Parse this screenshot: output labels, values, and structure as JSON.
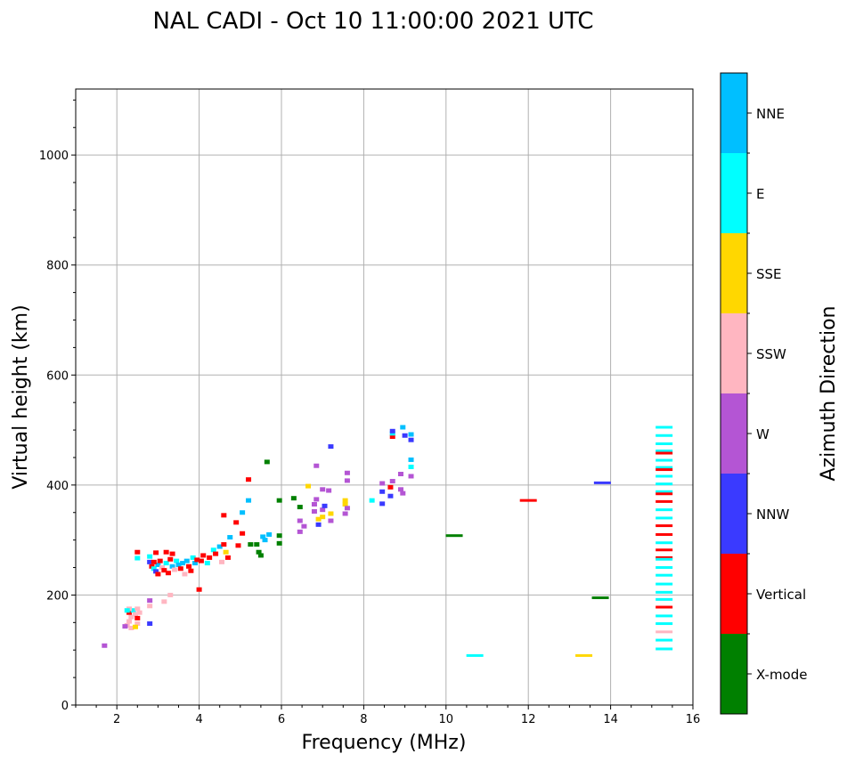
{
  "chart_data": {
    "type": "scatter",
    "title": "NAL CADI - Oct 10 11:00:00 2021 UTC",
    "xlabel": "Frequency (MHz)",
    "ylabel": "Virtual height (km)",
    "xlim": [
      1,
      16
    ],
    "ylim": [
      0,
      1120
    ],
    "xticks": [
      2,
      4,
      6,
      8,
      10,
      12,
      14,
      16
    ],
    "yticks": [
      0,
      200,
      400,
      600,
      800,
      1000
    ],
    "grid": true,
    "colorbar": {
      "label": "Azimuth Direction",
      "categories": [
        "X-mode",
        "Vertical",
        "NNW",
        "W",
        "SSW",
        "SSE",
        "E",
        "NNE"
      ],
      "colors": [
        "#008000",
        "#ff0000",
        "#3a3aff",
        "#b455d4",
        "#ffb6c1",
        "#ffd700",
        "#00ffff",
        "#00bfff"
      ]
    },
    "point_format": [
      "freq_MHz",
      "height_km",
      "direction_index"
    ],
    "points": [
      [
        1.7,
        108,
        3
      ],
      [
        2.25,
        145,
        4
      ],
      [
        2.3,
        152,
        4
      ],
      [
        2.35,
        160,
        4
      ],
      [
        2.3,
        168,
        1
      ],
      [
        2.4,
        172,
        6
      ],
      [
        2.45,
        165,
        4
      ],
      [
        2.5,
        158,
        1
      ],
      [
        2.5,
        148,
        4
      ],
      [
        2.35,
        140,
        4
      ],
      [
        2.3,
        175,
        4
      ],
      [
        2.45,
        142,
        5
      ],
      [
        2.5,
        175,
        4
      ],
      [
        2.55,
        168,
        4
      ],
      [
        2.25,
        172,
        6
      ],
      [
        2.2,
        143,
        3
      ],
      [
        2.8,
        148,
        2
      ],
      [
        2.8,
        180,
        4
      ],
      [
        2.8,
        190,
        3
      ],
      [
        3.3,
        200,
        4
      ],
      [
        3.15,
        188,
        4
      ],
      [
        4.0,
        210,
        1
      ],
      [
        2.5,
        278,
        1
      ],
      [
        2.5,
        267,
        6
      ],
      [
        2.8,
        270,
        6
      ],
      [
        2.95,
        277,
        1
      ],
      [
        2.8,
        260,
        2
      ],
      [
        2.85,
        252,
        1
      ],
      [
        2.9,
        248,
        6
      ],
      [
        2.95,
        243,
        2
      ],
      [
        3.0,
        255,
        7
      ],
      [
        3.05,
        262,
        1
      ],
      [
        3.1,
        250,
        4
      ],
      [
        3.15,
        245,
        1
      ],
      [
        3.2,
        258,
        6
      ],
      [
        3.25,
        240,
        1
      ],
      [
        3.3,
        265,
        1
      ],
      [
        3.35,
        252,
        7
      ],
      [
        3.4,
        246,
        4
      ],
      [
        3.45,
        262,
        6
      ],
      [
        3.5,
        255,
        7
      ],
      [
        3.55,
        248,
        1
      ],
      [
        3.6,
        258,
        7
      ],
      [
        3.65,
        238,
        4
      ],
      [
        3.7,
        262,
        7
      ],
      [
        3.75,
        252,
        1
      ],
      [
        3.8,
        244,
        1
      ],
      [
        3.85,
        268,
        6
      ],
      [
        3.9,
        258,
        7
      ],
      [
        3.95,
        264,
        1
      ],
      [
        4.05,
        262,
        1
      ],
      [
        4.1,
        272,
        1
      ],
      [
        4.2,
        258,
        6
      ],
      [
        4.25,
        268,
        1
      ],
      [
        4.35,
        282,
        6
      ],
      [
        4.4,
        275,
        1
      ],
      [
        4.5,
        288,
        7
      ],
      [
        4.6,
        292,
        1
      ],
      [
        4.65,
        278,
        5
      ],
      [
        4.7,
        268,
        1
      ],
      [
        4.75,
        305,
        7
      ],
      [
        4.9,
        332,
        1
      ],
      [
        4.95,
        290,
        1
      ],
      [
        5.05,
        312,
        1
      ],
      [
        5.05,
        350,
        7
      ],
      [
        5.2,
        372,
        7
      ],
      [
        5.2,
        410,
        1
      ],
      [
        4.6,
        345,
        1
      ],
      [
        5.5,
        272,
        0
      ],
      [
        4.55,
        260,
        4
      ],
      [
        3.2,
        278,
        1
      ],
      [
        3.35,
        275,
        1
      ],
      [
        2.9,
        260,
        1
      ],
      [
        3.0,
        238,
        1
      ],
      [
        5.25,
        292,
        0
      ],
      [
        5.4,
        292,
        0
      ],
      [
        5.45,
        278,
        0
      ],
      [
        5.55,
        306,
        7
      ],
      [
        5.6,
        300,
        7
      ],
      [
        5.7,
        310,
        7
      ],
      [
        5.65,
        442,
        0
      ],
      [
        5.95,
        294,
        0
      ],
      [
        5.95,
        308,
        0
      ],
      [
        5.95,
        372,
        0
      ],
      [
        6.3,
        376,
        0
      ],
      [
        6.45,
        360,
        0
      ],
      [
        6.45,
        335,
        3
      ],
      [
        6.45,
        315,
        3
      ],
      [
        6.55,
        325,
        3
      ],
      [
        6.65,
        398,
        5
      ],
      [
        6.8,
        352,
        3
      ],
      [
        6.8,
        365,
        3
      ],
      [
        6.85,
        374,
        3
      ],
      [
        6.85,
        435,
        3
      ],
      [
        6.9,
        338,
        5
      ],
      [
        6.9,
        328,
        2
      ],
      [
        7.0,
        342,
        5
      ],
      [
        7.0,
        355,
        3
      ],
      [
        7.05,
        362,
        2
      ],
      [
        7.0,
        392,
        3
      ],
      [
        7.15,
        390,
        3
      ],
      [
        7.2,
        348,
        5
      ],
      [
        7.2,
        470,
        2
      ],
      [
        7.2,
        335,
        3
      ],
      [
        7.55,
        372,
        5
      ],
      [
        7.55,
        365,
        5
      ],
      [
        7.6,
        358,
        3
      ],
      [
        7.55,
        348,
        3
      ],
      [
        7.6,
        408,
        3
      ],
      [
        7.6,
        422,
        3
      ],
      [
        8.2,
        372,
        6
      ],
      [
        8.45,
        366,
        2
      ],
      [
        8.45,
        388,
        2
      ],
      [
        8.45,
        403,
        3
      ],
      [
        8.65,
        380,
        2
      ],
      [
        8.65,
        396,
        1
      ],
      [
        8.7,
        407,
        3
      ],
      [
        8.7,
        488,
        1
      ],
      [
        8.7,
        494,
        6
      ],
      [
        8.7,
        498,
        2
      ],
      [
        8.9,
        420,
        3
      ],
      [
        8.9,
        392,
        3
      ],
      [
        8.95,
        385,
        3
      ],
      [
        8.95,
        505,
        7
      ],
      [
        9.0,
        490,
        2
      ],
      [
        9.15,
        492,
        7
      ],
      [
        9.15,
        482,
        2
      ],
      [
        9.15,
        446,
        7
      ],
      [
        9.15,
        433,
        6
      ],
      [
        9.15,
        416,
        3
      ],
      [
        10.2,
        308,
        0
      ],
      [
        10.7,
        90,
        6
      ],
      [
        12.0,
        372,
        1
      ],
      [
        13.35,
        90,
        5
      ],
      [
        13.75,
        195,
        0
      ],
      [
        13.8,
        404,
        2
      ],
      [
        15.3,
        505,
        6
      ],
      [
        15.3,
        490,
        6
      ],
      [
        15.3,
        475,
        6
      ],
      [
        15.3,
        462,
        6
      ],
      [
        15.3,
        458,
        1
      ],
      [
        15.3,
        445,
        6
      ],
      [
        15.3,
        432,
        6
      ],
      [
        15.3,
        428,
        1
      ],
      [
        15.3,
        416,
        6
      ],
      [
        15.3,
        402,
        6
      ],
      [
        15.3,
        388,
        6
      ],
      [
        15.3,
        384,
        1
      ],
      [
        15.3,
        370,
        1
      ],
      [
        15.3,
        355,
        6
      ],
      [
        15.3,
        340,
        6
      ],
      [
        15.3,
        326,
        1
      ],
      [
        15.3,
        310,
        1
      ],
      [
        15.3,
        295,
        6
      ],
      [
        15.3,
        282,
        1
      ],
      [
        15.3,
        268,
        1
      ],
      [
        15.3,
        265,
        6
      ],
      [
        15.3,
        250,
        6
      ],
      [
        15.3,
        236,
        6
      ],
      [
        15.3,
        220,
        6
      ],
      [
        15.3,
        205,
        6
      ],
      [
        15.3,
        192,
        6
      ],
      [
        15.3,
        178,
        1
      ],
      [
        15.3,
        162,
        6
      ],
      [
        15.3,
        148,
        6
      ],
      [
        15.3,
        133,
        4
      ],
      [
        15.3,
        118,
        6
      ],
      [
        15.3,
        102,
        6
      ]
    ]
  }
}
